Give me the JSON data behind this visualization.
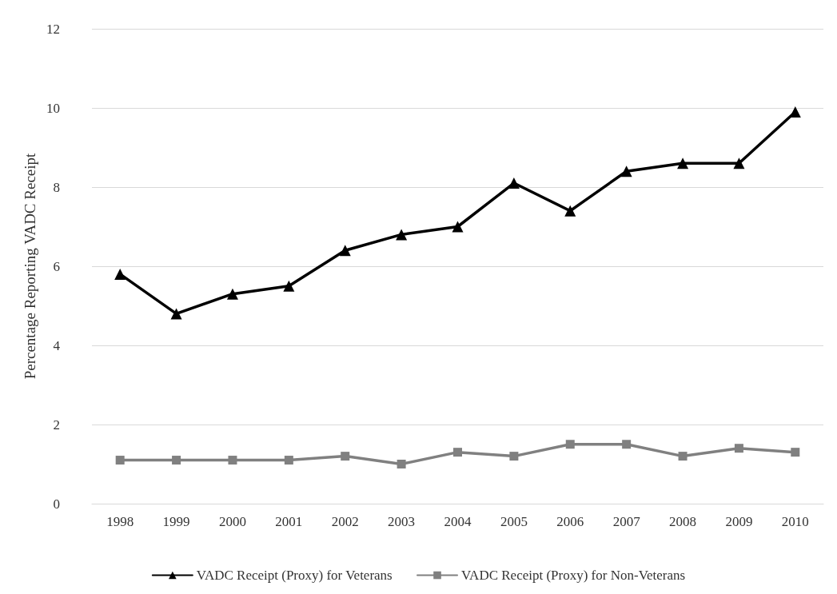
{
  "chart_data": {
    "type": "line",
    "ylabel": "Percentage Reporting VADC Receipt",
    "categories": [
      "1998",
      "1999",
      "2000",
      "2001",
      "2002",
      "2003",
      "2004",
      "2005",
      "2006",
      "2007",
      "2008",
      "2009",
      "2010"
    ],
    "series": [
      {
        "name": "VADC Receipt (Proxy) for Veterans",
        "color": "#000000",
        "marker": "triangle",
        "values": [
          5.8,
          4.8,
          5.3,
          5.5,
          6.4,
          6.8,
          7.0,
          8.1,
          7.4,
          8.4,
          8.6,
          8.6,
          9.9
        ]
      },
      {
        "name": "VADC Receipt (Proxy) for Non-Veterans",
        "color": "#808080",
        "marker": "square",
        "values": [
          1.1,
          1.1,
          1.1,
          1.1,
          1.2,
          1.0,
          1.3,
          1.2,
          1.5,
          1.5,
          1.2,
          1.4,
          1.3
        ]
      }
    ],
    "ylim": [
      0,
      12
    ],
    "yticks": [
      0,
      2,
      4,
      6,
      8,
      10,
      12
    ],
    "grid": "y",
    "legend": "bottom",
    "line_style": "solid"
  }
}
